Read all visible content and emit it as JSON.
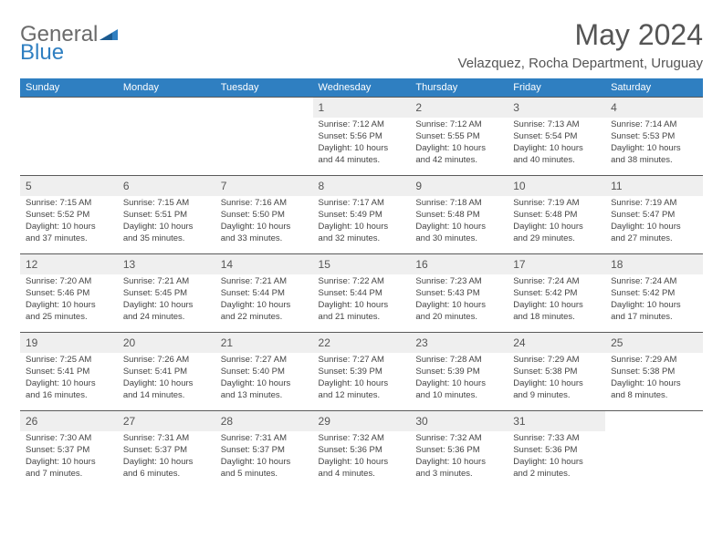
{
  "logo": {
    "text1": "General",
    "text2": "Blue"
  },
  "title": "May 2024",
  "subtitle": "Velazquez, Rocha Department, Uruguay",
  "colors": {
    "header_bg": "#2f7fc1",
    "header_text": "#ffffff",
    "daynum_bg": "#efefef",
    "border": "#5a5a5a",
    "text": "#444444",
    "title_color": "#555555"
  },
  "typography": {
    "title_fontsize": 32,
    "subtitle_fontsize": 15,
    "weekday_fontsize": 11,
    "daynum_fontsize": 12,
    "body_fontsize": 9.5
  },
  "weekdays": [
    "Sunday",
    "Monday",
    "Tuesday",
    "Wednesday",
    "Thursday",
    "Friday",
    "Saturday"
  ],
  "weeks": [
    [
      {
        "n": "",
        "sunrise": "",
        "sunset": "",
        "daylight": ""
      },
      {
        "n": "",
        "sunrise": "",
        "sunset": "",
        "daylight": ""
      },
      {
        "n": "",
        "sunrise": "",
        "sunset": "",
        "daylight": ""
      },
      {
        "n": "1",
        "sunrise": "Sunrise: 7:12 AM",
        "sunset": "Sunset: 5:56 PM",
        "daylight": "Daylight: 10 hours and 44 minutes."
      },
      {
        "n": "2",
        "sunrise": "Sunrise: 7:12 AM",
        "sunset": "Sunset: 5:55 PM",
        "daylight": "Daylight: 10 hours and 42 minutes."
      },
      {
        "n": "3",
        "sunrise": "Sunrise: 7:13 AM",
        "sunset": "Sunset: 5:54 PM",
        "daylight": "Daylight: 10 hours and 40 minutes."
      },
      {
        "n": "4",
        "sunrise": "Sunrise: 7:14 AM",
        "sunset": "Sunset: 5:53 PM",
        "daylight": "Daylight: 10 hours and 38 minutes."
      }
    ],
    [
      {
        "n": "5",
        "sunrise": "Sunrise: 7:15 AM",
        "sunset": "Sunset: 5:52 PM",
        "daylight": "Daylight: 10 hours and 37 minutes."
      },
      {
        "n": "6",
        "sunrise": "Sunrise: 7:15 AM",
        "sunset": "Sunset: 5:51 PM",
        "daylight": "Daylight: 10 hours and 35 minutes."
      },
      {
        "n": "7",
        "sunrise": "Sunrise: 7:16 AM",
        "sunset": "Sunset: 5:50 PM",
        "daylight": "Daylight: 10 hours and 33 minutes."
      },
      {
        "n": "8",
        "sunrise": "Sunrise: 7:17 AM",
        "sunset": "Sunset: 5:49 PM",
        "daylight": "Daylight: 10 hours and 32 minutes."
      },
      {
        "n": "9",
        "sunrise": "Sunrise: 7:18 AM",
        "sunset": "Sunset: 5:48 PM",
        "daylight": "Daylight: 10 hours and 30 minutes."
      },
      {
        "n": "10",
        "sunrise": "Sunrise: 7:19 AM",
        "sunset": "Sunset: 5:48 PM",
        "daylight": "Daylight: 10 hours and 29 minutes."
      },
      {
        "n": "11",
        "sunrise": "Sunrise: 7:19 AM",
        "sunset": "Sunset: 5:47 PM",
        "daylight": "Daylight: 10 hours and 27 minutes."
      }
    ],
    [
      {
        "n": "12",
        "sunrise": "Sunrise: 7:20 AM",
        "sunset": "Sunset: 5:46 PM",
        "daylight": "Daylight: 10 hours and 25 minutes."
      },
      {
        "n": "13",
        "sunrise": "Sunrise: 7:21 AM",
        "sunset": "Sunset: 5:45 PM",
        "daylight": "Daylight: 10 hours and 24 minutes."
      },
      {
        "n": "14",
        "sunrise": "Sunrise: 7:21 AM",
        "sunset": "Sunset: 5:44 PM",
        "daylight": "Daylight: 10 hours and 22 minutes."
      },
      {
        "n": "15",
        "sunrise": "Sunrise: 7:22 AM",
        "sunset": "Sunset: 5:44 PM",
        "daylight": "Daylight: 10 hours and 21 minutes."
      },
      {
        "n": "16",
        "sunrise": "Sunrise: 7:23 AM",
        "sunset": "Sunset: 5:43 PM",
        "daylight": "Daylight: 10 hours and 20 minutes."
      },
      {
        "n": "17",
        "sunrise": "Sunrise: 7:24 AM",
        "sunset": "Sunset: 5:42 PM",
        "daylight": "Daylight: 10 hours and 18 minutes."
      },
      {
        "n": "18",
        "sunrise": "Sunrise: 7:24 AM",
        "sunset": "Sunset: 5:42 PM",
        "daylight": "Daylight: 10 hours and 17 minutes."
      }
    ],
    [
      {
        "n": "19",
        "sunrise": "Sunrise: 7:25 AM",
        "sunset": "Sunset: 5:41 PM",
        "daylight": "Daylight: 10 hours and 16 minutes."
      },
      {
        "n": "20",
        "sunrise": "Sunrise: 7:26 AM",
        "sunset": "Sunset: 5:41 PM",
        "daylight": "Daylight: 10 hours and 14 minutes."
      },
      {
        "n": "21",
        "sunrise": "Sunrise: 7:27 AM",
        "sunset": "Sunset: 5:40 PM",
        "daylight": "Daylight: 10 hours and 13 minutes."
      },
      {
        "n": "22",
        "sunrise": "Sunrise: 7:27 AM",
        "sunset": "Sunset: 5:39 PM",
        "daylight": "Daylight: 10 hours and 12 minutes."
      },
      {
        "n": "23",
        "sunrise": "Sunrise: 7:28 AM",
        "sunset": "Sunset: 5:39 PM",
        "daylight": "Daylight: 10 hours and 10 minutes."
      },
      {
        "n": "24",
        "sunrise": "Sunrise: 7:29 AM",
        "sunset": "Sunset: 5:38 PM",
        "daylight": "Daylight: 10 hours and 9 minutes."
      },
      {
        "n": "25",
        "sunrise": "Sunrise: 7:29 AM",
        "sunset": "Sunset: 5:38 PM",
        "daylight": "Daylight: 10 hours and 8 minutes."
      }
    ],
    [
      {
        "n": "26",
        "sunrise": "Sunrise: 7:30 AM",
        "sunset": "Sunset: 5:37 PM",
        "daylight": "Daylight: 10 hours and 7 minutes."
      },
      {
        "n": "27",
        "sunrise": "Sunrise: 7:31 AM",
        "sunset": "Sunset: 5:37 PM",
        "daylight": "Daylight: 10 hours and 6 minutes."
      },
      {
        "n": "28",
        "sunrise": "Sunrise: 7:31 AM",
        "sunset": "Sunset: 5:37 PM",
        "daylight": "Daylight: 10 hours and 5 minutes."
      },
      {
        "n": "29",
        "sunrise": "Sunrise: 7:32 AM",
        "sunset": "Sunset: 5:36 PM",
        "daylight": "Daylight: 10 hours and 4 minutes."
      },
      {
        "n": "30",
        "sunrise": "Sunrise: 7:32 AM",
        "sunset": "Sunset: 5:36 PM",
        "daylight": "Daylight: 10 hours and 3 minutes."
      },
      {
        "n": "31",
        "sunrise": "Sunrise: 7:33 AM",
        "sunset": "Sunset: 5:36 PM",
        "daylight": "Daylight: 10 hours and 2 minutes."
      },
      {
        "n": "",
        "sunrise": "",
        "sunset": "",
        "daylight": ""
      }
    ]
  ]
}
